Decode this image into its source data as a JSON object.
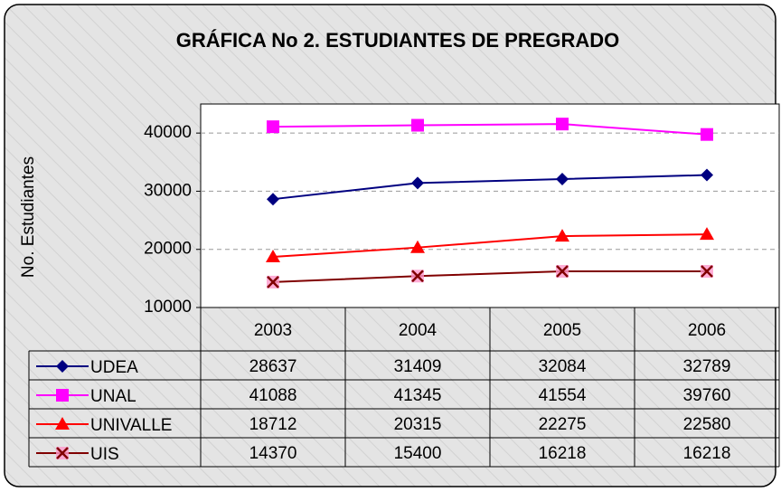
{
  "chart_data": {
    "type": "line",
    "title": "GRÁFICA No 2. ESTUDIANTES DE PREGRADO",
    "y_label": "No. Estudiantes",
    "categories": [
      "2003",
      "2004",
      "2005",
      "2006"
    ],
    "series": [
      {
        "name": "UDEA",
        "color": "#000080",
        "marker": "diamond",
        "values": [
          28637,
          31409,
          32084,
          32789
        ]
      },
      {
        "name": "UNAL",
        "color": "#ff00ff",
        "marker": "square",
        "values": [
          41088,
          41345,
          41554,
          39760
        ]
      },
      {
        "name": "UNIVALLE",
        "color": "#ff0000",
        "marker": "triangle",
        "values": [
          18712,
          20315,
          22275,
          22580
        ]
      },
      {
        "name": "UIS",
        "color": "#800000",
        "marker": "x",
        "values": [
          14370,
          15400,
          16218,
          16218
        ]
      }
    ],
    "ylim": [
      10000,
      45000
    ],
    "yticks": [
      10000,
      20000,
      30000,
      40000
    ],
    "grid": true,
    "data_table": true
  }
}
